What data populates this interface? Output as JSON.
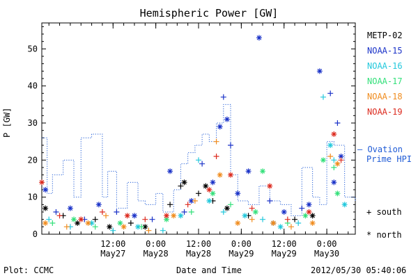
{
  "chart_data": {
    "type": "scatter",
    "title": "Hemispheric Power [GW]",
    "ylabel": "P [GW]",
    "xlabel": "Date and Time",
    "ylim": [
      0,
      57
    ],
    "xlim": [
      "2012-05-26T16:00",
      "2012-05-30T08:00"
    ],
    "x_ticks": [
      {
        "at": "2012-05-27T12:00",
        "time": "12:00",
        "date": "May27"
      },
      {
        "at": "2012-05-28T00:00",
        "time": "0:00",
        "date": "May28"
      },
      {
        "at": "2012-05-28T12:00",
        "time": "12:00",
        "date": "May28"
      },
      {
        "at": "2012-05-29T00:00",
        "time": "0:00",
        "date": "May29"
      },
      {
        "at": "2012-05-29T12:00",
        "time": "12:00",
        "date": "May29"
      },
      {
        "at": "2012-05-30T00:00",
        "time": "0:00",
        "date": "May30"
      }
    ],
    "y_ticks": [
      0,
      10,
      20,
      30,
      40,
      50
    ],
    "series": [
      {
        "name": "METP-02",
        "color": "#000000",
        "points": [
          [
            "2012-05-26T17:00",
            7,
            "n"
          ],
          [
            "2012-05-26T22:00",
            5,
            "s"
          ],
          [
            "2012-05-27T02:00",
            3,
            "n"
          ],
          [
            "2012-05-27T07:00",
            4,
            "s"
          ],
          [
            "2012-05-27T11:00",
            2,
            "n"
          ],
          [
            "2012-05-27T17:00",
            3,
            "s"
          ],
          [
            "2012-05-27T21:00",
            2,
            "n"
          ],
          [
            "2012-05-28T04:00",
            8,
            "s"
          ],
          [
            "2012-05-28T07:00",
            13,
            "s"
          ],
          [
            "2012-05-28T08:00",
            14,
            "n"
          ],
          [
            "2012-05-28T12:00",
            11,
            "s"
          ],
          [
            "2012-05-28T14:00",
            13,
            "n"
          ],
          [
            "2012-05-28T16:00",
            9,
            "s"
          ],
          [
            "2012-05-28T20:00",
            7,
            "n"
          ],
          [
            "2012-05-29T02:00",
            5,
            "s"
          ],
          [
            "2012-05-29T09:00",
            3,
            "n"
          ],
          [
            "2012-05-29T15:00",
            4,
            "s"
          ],
          [
            "2012-05-29T20:00",
            5,
            "n"
          ]
        ]
      },
      {
        "name": "NOAA-15",
        "color": "#1a32c8",
        "points": [
          [
            "2012-05-26T17:00",
            12,
            "n"
          ],
          [
            "2012-05-26T20:00",
            6,
            "s"
          ],
          [
            "2012-05-27T00:00",
            7,
            "n"
          ],
          [
            "2012-05-27T04:00",
            4,
            "s"
          ],
          [
            "2012-05-27T08:00",
            8,
            "n"
          ],
          [
            "2012-05-27T13:00",
            6,
            "s"
          ],
          [
            "2012-05-27T18:00",
            5,
            "n"
          ],
          [
            "2012-05-27T23:00",
            4,
            "s"
          ],
          [
            "2012-05-28T04:00",
            17,
            "n"
          ],
          [
            "2012-05-28T08:00",
            6,
            "s"
          ],
          [
            "2012-05-28T10:00",
            9,
            "n"
          ],
          [
            "2012-05-28T13:00",
            19,
            "s"
          ],
          [
            "2012-05-28T16:00",
            14,
            "n"
          ],
          [
            "2012-05-28T18:00",
            29,
            "n"
          ],
          [
            "2012-05-28T19:00",
            37,
            "s"
          ],
          [
            "2012-05-28T20:00",
            31,
            "n"
          ],
          [
            "2012-05-28T21:00",
            24,
            "s"
          ],
          [
            "2012-05-28T23:00",
            11,
            "n"
          ],
          [
            "2012-05-29T02:00",
            17,
            "n"
          ],
          [
            "2012-05-29T05:00",
            53,
            "n"
          ],
          [
            "2012-05-29T08:00",
            9,
            "s"
          ],
          [
            "2012-05-29T12:00",
            6,
            "n"
          ],
          [
            "2012-05-29T17:00",
            7,
            "s"
          ],
          [
            "2012-05-29T19:00",
            8,
            "n"
          ],
          [
            "2012-05-29T22:00",
            44,
            "n"
          ],
          [
            "2012-05-30T01:00",
            38,
            "s"
          ],
          [
            "2012-05-30T02:00",
            14,
            "n"
          ],
          [
            "2012-05-30T03:00",
            30,
            "s"
          ],
          [
            "2012-05-30T04:00",
            21,
            "n"
          ]
        ]
      },
      {
        "name": "NOAA-16",
        "color": "#22c8dc",
        "points": [
          [
            "2012-05-26T18:00",
            4,
            "s"
          ],
          [
            "2012-05-27T00:00",
            2,
            "s"
          ],
          [
            "2012-05-27T06:00",
            3,
            "n"
          ],
          [
            "2012-05-27T12:00",
            1,
            "s"
          ],
          [
            "2012-05-27T19:00",
            2,
            "n"
          ],
          [
            "2012-05-28T02:00",
            1,
            "s"
          ],
          [
            "2012-05-28T07:00",
            5,
            "n"
          ],
          [
            "2012-05-28T12:00",
            20,
            "s"
          ],
          [
            "2012-05-28T15:00",
            9,
            "n"
          ],
          [
            "2012-05-28T19:00",
            6,
            "s"
          ],
          [
            "2012-05-29T01:00",
            5,
            "n"
          ],
          [
            "2012-05-29T06:00",
            4,
            "s"
          ],
          [
            "2012-05-29T11:00",
            2,
            "n"
          ],
          [
            "2012-05-29T16:00",
            3,
            "s"
          ],
          [
            "2012-05-29T23:00",
            37,
            "s"
          ],
          [
            "2012-05-30T01:00",
            24,
            "n"
          ],
          [
            "2012-05-30T02:00",
            20,
            "s"
          ],
          [
            "2012-05-30T05:00",
            8,
            "n"
          ]
        ]
      },
      {
        "name": "NOAA-17",
        "color": "#33e07a",
        "points": [
          [
            "2012-05-26T19:00",
            3,
            "s"
          ],
          [
            "2012-05-27T01:00",
            4,
            "n"
          ],
          [
            "2012-05-27T07:00",
            2,
            "s"
          ],
          [
            "2012-05-27T14:00",
            3,
            "n"
          ],
          [
            "2012-05-27T20:00",
            2,
            "s"
          ],
          [
            "2012-05-28T03:00",
            4,
            "n"
          ],
          [
            "2012-05-28T10:00",
            6,
            "s"
          ],
          [
            "2012-05-28T16:00",
            11,
            "n"
          ],
          [
            "2012-05-28T21:00",
            8,
            "s"
          ],
          [
            "2012-05-29T04:00",
            6,
            "n"
          ],
          [
            "2012-05-29T06:00",
            17,
            "n"
          ],
          [
            "2012-05-29T13:00",
            3,
            "s"
          ],
          [
            "2012-05-29T18:00",
            5,
            "n"
          ],
          [
            "2012-05-29T23:00",
            20,
            "n"
          ],
          [
            "2012-05-30T02:00",
            18,
            "s"
          ],
          [
            "2012-05-30T03:00",
            11,
            "n"
          ]
        ]
      },
      {
        "name": "NOAA-18",
        "color": "#f08c1e",
        "points": [
          [
            "2012-05-26T17:00",
            3,
            "n"
          ],
          [
            "2012-05-26T23:00",
            2,
            "s"
          ],
          [
            "2012-05-27T05:00",
            3,
            "n"
          ],
          [
            "2012-05-27T10:00",
            5,
            "s"
          ],
          [
            "2012-05-27T15:00",
            2,
            "n"
          ],
          [
            "2012-05-27T22:00",
            1,
            "s"
          ],
          [
            "2012-05-28T05:00",
            5,
            "n"
          ],
          [
            "2012-05-28T11:00",
            9,
            "s"
          ],
          [
            "2012-05-28T17:00",
            25,
            "s"
          ],
          [
            "2012-05-28T18:00",
            16,
            "n"
          ],
          [
            "2012-05-28T23:00",
            3,
            "n"
          ],
          [
            "2012-05-29T03:00",
            4,
            "s"
          ],
          [
            "2012-05-29T09:00",
            3,
            "n"
          ],
          [
            "2012-05-29T14:00",
            2,
            "s"
          ],
          [
            "2012-05-29T20:00",
            3,
            "n"
          ],
          [
            "2012-05-30T01:00",
            21,
            "s"
          ],
          [
            "2012-05-30T03:00",
            19,
            "n"
          ]
        ]
      },
      {
        "name": "NOAA-19",
        "color": "#dc2a1e",
        "points": [
          [
            "2012-05-26T16:00",
            14,
            "n"
          ],
          [
            "2012-05-26T21:00",
            5,
            "s"
          ],
          [
            "2012-05-27T03:00",
            4,
            "n"
          ],
          [
            "2012-05-27T09:00",
            6,
            "s"
          ],
          [
            "2012-05-27T16:00",
            5,
            "n"
          ],
          [
            "2012-05-27T21:00",
            4,
            "s"
          ],
          [
            "2012-05-28T03:00",
            5,
            "n"
          ],
          [
            "2012-05-28T09:00",
            8,
            "s"
          ],
          [
            "2012-05-28T15:00",
            12,
            "n"
          ],
          [
            "2012-05-28T17:00",
            21,
            "s"
          ],
          [
            "2012-05-28T21:00",
            16,
            "n"
          ],
          [
            "2012-05-29T03:00",
            7,
            "s"
          ],
          [
            "2012-05-29T08:00",
            13,
            "n"
          ],
          [
            "2012-05-29T13:00",
            4,
            "s"
          ],
          [
            "2012-05-29T19:00",
            6,
            "n"
          ],
          [
            "2012-05-30T02:00",
            27,
            "n"
          ],
          [
            "2012-05-30T04:00",
            20,
            "s"
          ]
        ]
      }
    ],
    "reference_line": {
      "name": "Ovation Prime HPI",
      "style": "dotted step",
      "color": "#1f5bd6",
      "x": [
        "2012-05-26T16:00",
        "2012-05-26T17:30",
        "2012-05-26T19:00",
        "2012-05-26T22:00",
        "2012-05-27T01:00",
        "2012-05-27T03:00",
        "2012-05-27T06:00",
        "2012-05-27T09:00",
        "2012-05-27T10:30",
        "2012-05-27T13:00",
        "2012-05-27T16:00",
        "2012-05-27T19:00",
        "2012-05-27T21:00",
        "2012-05-28T00:00",
        "2012-05-28T02:00",
        "2012-05-28T05:00",
        "2012-05-28T07:00",
        "2012-05-28T09:00",
        "2012-05-28T11:00",
        "2012-05-28T13:00",
        "2012-05-28T15:00",
        "2012-05-28T17:00",
        "2012-05-28T19:00",
        "2012-05-28T21:00",
        "2012-05-28T23:00",
        "2012-05-29T02:00",
        "2012-05-29T05:00",
        "2012-05-29T08:00",
        "2012-05-29T11:00",
        "2012-05-29T14:00",
        "2012-05-29T17:00",
        "2012-05-29T20:00",
        "2012-05-29T22:00",
        "2012-05-30T00:00",
        "2012-05-30T02:00",
        "2012-05-30T05:00",
        "2012-05-30T08:00"
      ],
      "y": [
        26,
        11,
        16,
        20,
        10,
        26,
        27,
        10,
        17,
        7,
        14,
        9,
        8,
        11,
        6,
        12,
        19,
        22,
        24,
        27,
        25,
        30,
        35,
        16,
        9,
        8,
        13,
        9,
        8,
        5,
        18,
        10,
        8,
        25,
        24,
        10,
        9
      ]
    },
    "legend": [
      "METP-02",
      "NOAA-15",
      "NOAA-16",
      "NOAA-17",
      "NOAA-18",
      "NOAA-19"
    ],
    "legend_placement": "right",
    "grid": false
  },
  "ovation_label": [
    "– Ovation",
    "Prime HPI"
  ],
  "symbol_key": {
    "south": "+ south",
    "north": "* north"
  },
  "footer": {
    "left": "Plot: CCMC",
    "right": "2012/05/30 05:40:06"
  }
}
